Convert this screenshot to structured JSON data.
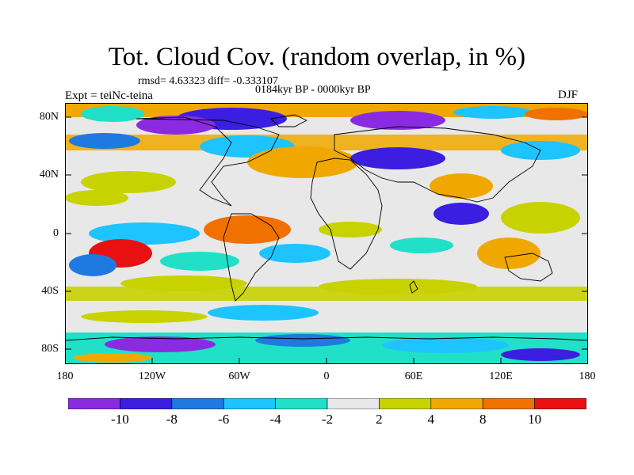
{
  "title": "Tot. Cloud Cov. (random overlap, in %)",
  "stats": "rmsd= 4.63323 diff= -0.333107",
  "period": "0184kyr BP - 0000kyr BP",
  "experiment": "Expt = teiNc-teina",
  "season": "DJF",
  "lat_labels": [
    "80N",
    "40N",
    "0",
    "40S",
    "80S"
  ],
  "lon_labels": [
    "180",
    "120W",
    "60W",
    "0",
    "60E",
    "120E",
    "180"
  ],
  "colorbar": {
    "labels": [
      "-10",
      "-8",
      "-6",
      "-4",
      "-2",
      "2",
      "4",
      "8",
      "10"
    ],
    "colors": [
      "#8a2be2",
      "#3b1ee0",
      "#1e7ae0",
      "#1ec4ff",
      "#20e0c8",
      "#e8e8e8",
      "#c8d200",
      "#f0a800",
      "#f07000",
      "#e81010"
    ]
  }
}
